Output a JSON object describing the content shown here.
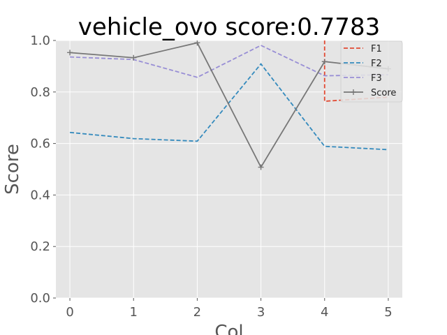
{
  "chart_data": {
    "type": "line",
    "title": "vehicle_ovo score:0.7783",
    "xlabel": "Col",
    "ylabel": "Score",
    "x": [
      0,
      1,
      2,
      3,
      4,
      5
    ],
    "xlim": [
      -0.22,
      5.22
    ],
    "ylim": [
      0.0,
      1.0
    ],
    "xticks": [
      "0",
      "1",
      "2",
      "3",
      "4",
      "5"
    ],
    "yticks": [
      "0.0",
      "0.2",
      "0.4",
      "0.6",
      "0.8",
      "1.0"
    ],
    "grid": true,
    "legend_position": "top-right",
    "series": [
      {
        "name": "F1",
        "color": "#E24A33",
        "style": "dashed",
        "marker": "none",
        "x": [
          4,
          4,
          5
        ],
        "values": [
          1.05,
          0.764,
          0.78
        ]
      },
      {
        "name": "F2",
        "color": "#348ABD",
        "style": "dashed",
        "marker": "none",
        "x": [
          0,
          1,
          2,
          3,
          4,
          5
        ],
        "values": [
          0.643,
          0.619,
          0.609,
          0.909,
          0.589,
          0.576
        ]
      },
      {
        "name": "F3",
        "color": "#988ED5",
        "style": "dashed",
        "marker": "none",
        "x": [
          0,
          1,
          2,
          3,
          4,
          5
        ],
        "values": [
          0.936,
          0.926,
          0.857,
          0.981,
          0.863,
          0.867
        ]
      },
      {
        "name": "Score",
        "color": "#777777",
        "style": "solid",
        "marker": "plus",
        "x": [
          0,
          1,
          2,
          3,
          4,
          5
        ],
        "values": [
          0.953,
          0.933,
          0.991,
          0.508,
          0.918,
          0.89
        ]
      }
    ]
  }
}
